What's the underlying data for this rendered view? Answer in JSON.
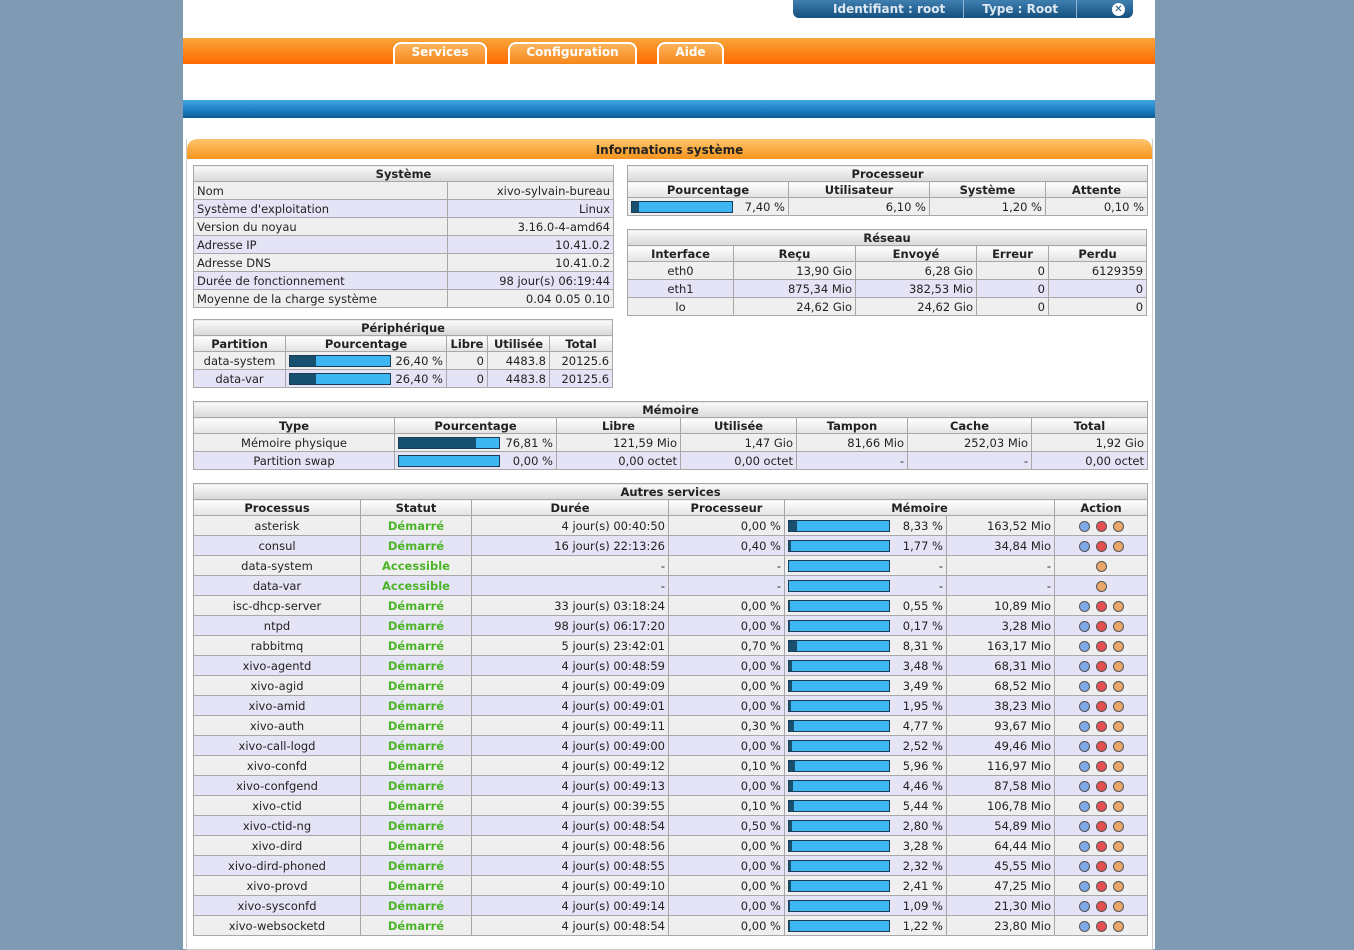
{
  "header": {
    "login_label": "Identifiant :",
    "login": "root",
    "type_label": "Type :",
    "type": "Root"
  },
  "menu": [
    "Services",
    "Configuration",
    "Aide"
  ],
  "panel_title": "Informations système",
  "systeme": {
    "title": "Système",
    "rows": [
      [
        "Nom",
        "xivo-sylvain-bureau"
      ],
      [
        "Système d'exploitation",
        "Linux"
      ],
      [
        "Version du noyau",
        "3.16.0-4-amd64"
      ],
      [
        "Adresse IP",
        "10.41.0.2"
      ],
      [
        "Adresse DNS",
        "10.41.0.2"
      ],
      [
        "Durée de fonctionnement",
        "98 jour(s) 06:19:44"
      ],
      [
        "Moyenne de la charge système",
        "0.04 0.05 0.10"
      ]
    ]
  },
  "processeur": {
    "title": "Processeur",
    "columns": [
      "Pourcentage",
      "Utilisateur",
      "Système",
      "Attente"
    ],
    "rows": [
      [
        {
          "value": 7.4,
          "label": "7,40 %"
        },
        "6,10 %",
        "1,20 %",
        "0,10 %"
      ]
    ]
  },
  "reseau": {
    "title": "Réseau",
    "columns": [
      "Interface",
      "Reçu",
      "Envoyé",
      "Erreur",
      "Perdu"
    ],
    "rows": [
      [
        "eth0",
        "13,90 Gio",
        "6,28 Gio",
        "0",
        "6129359"
      ],
      [
        "eth1",
        "875,34 Mio",
        "382,53 Mio",
        "0",
        "0"
      ],
      [
        "lo",
        "24,62 Gio",
        "24,62 Gio",
        "0",
        "0"
      ]
    ]
  },
  "peripherique": {
    "title": "Périphérique",
    "columns": [
      "Partition",
      "Pourcentage",
      "Libre",
      "Utilisée",
      "Total"
    ],
    "rows": [
      [
        "data-system",
        {
          "value": 26.4,
          "label": "26,40 %"
        },
        "0",
        "4483.8",
        "20125.6"
      ],
      [
        "data-var",
        {
          "value": 26.4,
          "label": "26,40 %"
        },
        "0",
        "4483.8",
        "20125.6"
      ]
    ]
  },
  "memoire": {
    "title": "Mémoire",
    "columns": [
      "Type",
      "Pourcentage",
      "Libre",
      "Utilisée",
      "Tampon",
      "Cache",
      "Total"
    ],
    "rows": [
      [
        "Mémoire physique",
        {
          "value": 76.81,
          "label": "76,81 %"
        },
        "121,59 Mio",
        "1,47 Gio",
        "81,66 Mio",
        "252,03 Mio",
        "1,92 Gio"
      ],
      [
        "Partition swap",
        {
          "value": 0,
          "label": "0,00 %"
        },
        "0,00 octet",
        "0,00 octet",
        "-",
        "-",
        "0,00 octet"
      ]
    ]
  },
  "services": {
    "title": "Autres services",
    "columns": [
      "Processus",
      "Statut",
      "Durée",
      "Processeur",
      "Mémoire",
      "Action"
    ],
    "rows": [
      [
        "asterisk",
        "Démarré",
        "4 jour(s) 00:40:50",
        "0,00 %",
        {
          "value": 8.33,
          "label": "8,33 %"
        },
        "163,52 Mio"
      ],
      [
        "consul",
        "Démarré",
        "16 jour(s) 22:13:26",
        "0,40 %",
        {
          "value": 1.77,
          "label": "1,77 %"
        },
        "34,84 Mio"
      ],
      [
        "data-system",
        "Accessible",
        "-",
        "-",
        {
          "value": null,
          "label": "-"
        },
        "-"
      ],
      [
        "data-var",
        "Accessible",
        "-",
        "-",
        {
          "value": null,
          "label": "-"
        },
        "-"
      ],
      [
        "isc-dhcp-server",
        "Démarré",
        "33 jour(s) 03:18:24",
        "0,00 %",
        {
          "value": 0.55,
          "label": "0,55 %"
        },
        "10,89 Mio"
      ],
      [
        "ntpd",
        "Démarré",
        "98 jour(s) 06:17:20",
        "0,00 %",
        {
          "value": 0.17,
          "label": "0,17 %"
        },
        "3,28 Mio"
      ],
      [
        "rabbitmq",
        "Démarré",
        "5 jour(s) 23:42:01",
        "0,70 %",
        {
          "value": 8.31,
          "label": "8,31 %"
        },
        "163,17 Mio"
      ],
      [
        "xivo-agentd",
        "Démarré",
        "4 jour(s) 00:48:59",
        "0,00 %",
        {
          "value": 3.48,
          "label": "3,48 %"
        },
        "68,31 Mio"
      ],
      [
        "xivo-agid",
        "Démarré",
        "4 jour(s) 00:49:09",
        "0,00 %",
        {
          "value": 3.49,
          "label": "3,49 %"
        },
        "68,52 Mio"
      ],
      [
        "xivo-amid",
        "Démarré",
        "4 jour(s) 00:49:01",
        "0,00 %",
        {
          "value": 1.95,
          "label": "1,95 %"
        },
        "38,23 Mio"
      ],
      [
        "xivo-auth",
        "Démarré",
        "4 jour(s) 00:49:11",
        "0,30 %",
        {
          "value": 4.77,
          "label": "4,77 %"
        },
        "93,67 Mio"
      ],
      [
        "xivo-call-logd",
        "Démarré",
        "4 jour(s) 00:49:00",
        "0,00 %",
        {
          "value": 2.52,
          "label": "2,52 %"
        },
        "49,46 Mio"
      ],
      [
        "xivo-confd",
        "Démarré",
        "4 jour(s) 00:49:12",
        "0,10 %",
        {
          "value": 5.96,
          "label": "5,96 %"
        },
        "116,97 Mio"
      ],
      [
        "xivo-confgend",
        "Démarré",
        "4 jour(s) 00:49:13",
        "0,00 %",
        {
          "value": 4.46,
          "label": "4,46 %"
        },
        "87,58 Mio"
      ],
      [
        "xivo-ctid",
        "Démarré",
        "4 jour(s) 00:39:55",
        "0,10 %",
        {
          "value": 5.44,
          "label": "5,44 %"
        },
        "106,78 Mio"
      ],
      [
        "xivo-ctid-ng",
        "Démarré",
        "4 jour(s) 00:48:54",
        "0,50 %",
        {
          "value": 2.8,
          "label": "2,80 %"
        },
        "54,89 Mio"
      ],
      [
        "xivo-dird",
        "Démarré",
        "4 jour(s) 00:48:56",
        "0,00 %",
        {
          "value": 3.28,
          "label": "3,28 %"
        },
        "64,44 Mio"
      ],
      [
        "xivo-dird-phoned",
        "Démarré",
        "4 jour(s) 00:48:55",
        "0,00 %",
        {
          "value": 2.32,
          "label": "2,32 %"
        },
        "45,55 Mio"
      ],
      [
        "xivo-provd",
        "Démarré",
        "4 jour(s) 00:49:10",
        "0,00 %",
        {
          "value": 2.41,
          "label": "2,41 %"
        },
        "47,25 Mio"
      ],
      [
        "xivo-sysconfd",
        "Démarré",
        "4 jour(s) 00:49:14",
        "0,00 %",
        {
          "value": 1.09,
          "label": "1,09 %"
        },
        "21,30 Mio"
      ],
      [
        "xivo-websocketd",
        "Démarré",
        "4 jour(s) 00:48:54",
        "0,00 %",
        {
          "value": 1.22,
          "label": "1,22 %"
        },
        "23,80 Mio"
      ]
    ]
  }
}
